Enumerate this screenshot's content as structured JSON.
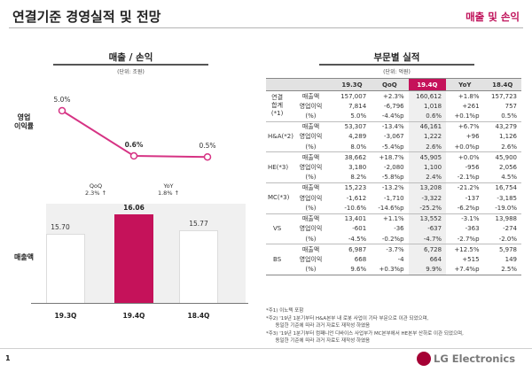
{
  "header": {
    "title": "연결기준 경영실적 및 전망",
    "right_label": "매출 및 손익"
  },
  "left": {
    "title": "매출 / 손익",
    "unit": "(단위: 조원)",
    "op_margin_label": "영업\n이익률",
    "revenue_label": "매출액"
  },
  "right": {
    "title": "부문별 실적",
    "unit": "(단위: 억원)"
  },
  "chart_data": {
    "type": "bar",
    "categories": [
      "19.3Q",
      "19.4Q",
      "18.4Q"
    ],
    "series": [
      {
        "name": "매출액",
        "values": [
          15.7,
          16.06,
          15.77
        ],
        "labels": [
          "15.70",
          "16.06",
          "15.77"
        ]
      },
      {
        "name": "영업이익률",
        "values": [
          5.0,
          0.6,
          0.5
        ],
        "labels": [
          "5.0%",
          "0.6%",
          "0.5%"
        ]
      }
    ],
    "changes": [
      {
        "label": "QoQ",
        "value": "2.3% ↑"
      },
      {
        "label": "YoY",
        "value": "1.8% ↑"
      }
    ],
    "highlight_index": 1,
    "colors": {
      "highlight": "#c5125a",
      "line": "#d63384"
    }
  },
  "table": {
    "columns": [
      "19.3Q",
      "QoQ",
      "19.4Q",
      "YoY",
      "18.4Q"
    ],
    "highlight_col": 2,
    "groups": [
      {
        "name": "연결\n합계(*1)",
        "rows": [
          {
            "label": "매출액",
            "values": [
              "157,007",
              "+2.3%",
              "160,612",
              "+1.8%",
              "157,723"
            ]
          },
          {
            "label": "영업이익",
            "values": [
              "7,814",
              "-6,796",
              "1,018",
              "+261",
              "757"
            ]
          },
          {
            "label": "(%)",
            "values": [
              "5.0%",
              "-4.4%p",
              "0.6%",
              "+0.1%p",
              "0.5%"
            ]
          }
        ]
      },
      {
        "name": "H&A(*2)",
        "rows": [
          {
            "label": "매출액",
            "values": [
              "53,307",
              "-13.4%",
              "46,161",
              "+6.7%",
              "43,279"
            ]
          },
          {
            "label": "영업이익",
            "values": [
              "4,289",
              "-3,067",
              "1,222",
              "+96",
              "1,126"
            ]
          },
          {
            "label": "(%)",
            "values": [
              "8.0%",
              "-5.4%p",
              "2.6%",
              "+0.0%p",
              "2.6%"
            ]
          }
        ]
      },
      {
        "name": "HE(*3)",
        "rows": [
          {
            "label": "매출액",
            "values": [
              "38,662",
              "+18.7%",
              "45,905",
              "+0.0%",
              "45,900"
            ]
          },
          {
            "label": "영업이익",
            "values": [
              "3,180",
              "-2,080",
              "1,100",
              "-956",
              "2,056"
            ]
          },
          {
            "label": "(%)",
            "values": [
              "8.2%",
              "-5.8%p",
              "2.4%",
              "-2.1%p",
              "4.5%"
            ]
          }
        ]
      },
      {
        "name": "MC(*3)",
        "rows": [
          {
            "label": "매출액",
            "values": [
              "15,223",
              "-13.2%",
              "13,208",
              "-21.2%",
              "16,754"
            ]
          },
          {
            "label": "영업이익",
            "values": [
              "-1,612",
              "-1,710",
              "-3,322",
              "-137",
              "-3,185"
            ]
          },
          {
            "label": "(%)",
            "values": [
              "-10.6%",
              "-14.6%p",
              "-25.2%",
              "-6.2%p",
              "-19.0%"
            ]
          }
        ]
      },
      {
        "name": "VS",
        "rows": [
          {
            "label": "매출액",
            "values": [
              "13,401",
              "+1.1%",
              "13,552",
              "-3.1%",
              "13,988"
            ]
          },
          {
            "label": "영업이익",
            "values": [
              "-601",
              "-36",
              "-637",
              "-363",
              "-274"
            ]
          },
          {
            "label": "(%)",
            "values": [
              "-4.5%",
              "-0.2%p",
              "-4.7%",
              "-2.7%p",
              "-2.0%"
            ]
          }
        ]
      },
      {
        "name": "BS",
        "rows": [
          {
            "label": "매출액",
            "values": [
              "6,987",
              "-3.7%",
              "6,728",
              "+12.5%",
              "5,978"
            ]
          },
          {
            "label": "영업이익",
            "values": [
              "668",
              "-4",
              "664",
              "+515",
              "149"
            ]
          },
          {
            "label": "(%)",
            "values": [
              "9.6%",
              "+0.3%p",
              "9.9%",
              "+7.4%p",
              "2.5%"
            ]
          }
        ]
      }
    ]
  },
  "notes": [
    "*주1) 이노텍 포함",
    "*주2) '19년 1분기부터 H&A본부 내 로봇 사업이 기타 부문으로 이관 되었으며,",
    "      동일한 기준에 따라 과거 자료도 재작성 하였음",
    "*주3) '19년 1분기부터 컴패니언 디바이스 사업부가 MC본부에서 HE본부 산하로 이관 되었으며,",
    "      동일한 기준에 따라 과거 자료도 재작성 하였음"
  ],
  "footer": {
    "page_number": "1",
    "logo_text": "LG Electronics"
  }
}
